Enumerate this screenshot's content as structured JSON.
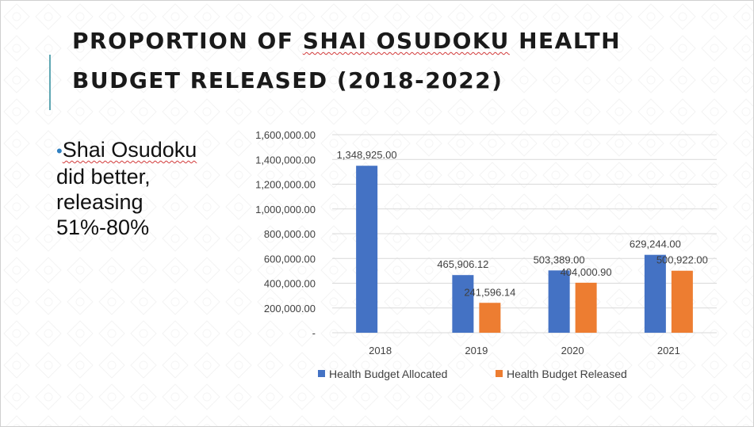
{
  "slide": {
    "title_part1": "PROPORTION OF ",
    "title_part2": "SHAI OSUDOKU",
    "title_part3": " HEALTH BUDGET RELEASED (2018-2022)",
    "bullet_part1": "Shai Osudoku",
    "bullet_part2": " did better, releasing 51%-80%"
  },
  "colors": {
    "allocated": "#4472c4",
    "released": "#ed7d31",
    "grid": "#d9d9d9",
    "axis_text": "#404040",
    "accent": "#5fa7b3"
  },
  "chart_data": {
    "type": "bar",
    "categories": [
      "2018",
      "2019",
      "2020",
      "2021"
    ],
    "series": [
      {
        "name": "Health Budget Allocated",
        "values": [
          1348925.0,
          465906.12,
          503389.0,
          629244.0
        ],
        "labels": [
          "1,348,925.00",
          "465,906.12",
          "503,389.00",
          "629,244.00"
        ]
      },
      {
        "name": "Health Budget Released",
        "values": [
          null,
          241596.14,
          404000.9,
          500922.0
        ],
        "labels": [
          "",
          "241,596.14",
          "404,000.90",
          "500,922.00"
        ]
      }
    ],
    "ylim": [
      0,
      1600000
    ],
    "yticks": [
      0,
      200000,
      400000,
      600000,
      800000,
      1000000,
      1200000,
      1400000,
      1600000
    ],
    "ytick_labels": [
      "-",
      "200,000.00",
      "400,000.00",
      "600,000.00",
      "800,000.00",
      "1,000,000.00",
      "1,200,000.00",
      "1,400,000.00",
      "1,600,000.00"
    ],
    "grid": true,
    "legend": "bottom"
  }
}
